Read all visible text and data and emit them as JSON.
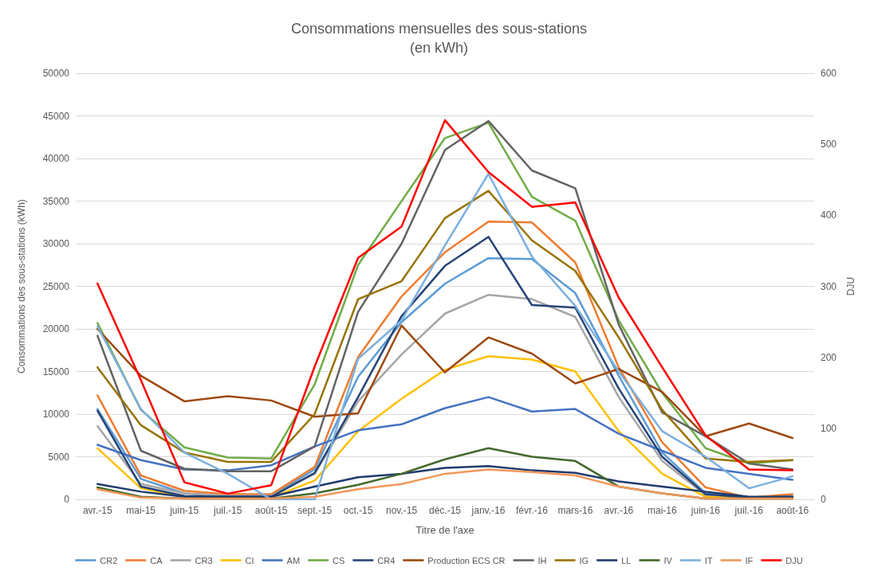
{
  "chart_data": {
    "type": "line",
    "title": "Consommations mensuelles des sous-stations",
    "subtitle": "(en kWh)",
    "xlabel": "Titre de l'axe",
    "ylabel": "Consommations des sous-stations (kWh)",
    "y2label": "DJU",
    "categories": [
      "avr.-15",
      "mai-15",
      "juin-15",
      "juil.-15",
      "août-15",
      "sept.-15",
      "oct.-15",
      "nov.-15",
      "déc.-15",
      "janv.-16",
      "févr.-16",
      "mars-16",
      "avr.-16",
      "mai-16",
      "juin-16",
      "juil.-16",
      "août-16"
    ],
    "series": [
      {
        "name": "CR2",
        "color": "#5b9bd5",
        "values": [
          10600,
          2400,
          700,
          400,
          400,
          3500,
          14400,
          20800,
          25300,
          28300,
          28200,
          24200,
          14500,
          5500,
          700,
          200,
          300
        ]
      },
      {
        "name": "CA",
        "color": "#ed7d31",
        "values": [
          12200,
          2800,
          1000,
          600,
          600,
          3800,
          16700,
          23800,
          29000,
          32600,
          32500,
          27800,
          15500,
          6700,
          1400,
          200,
          600
        ]
      },
      {
        "name": "CR3",
        "color": "#a5a5a5",
        "values": [
          8600,
          1800,
          700,
          400,
          400,
          3000,
          11500,
          17000,
          21800,
          24000,
          23500,
          21400,
          12000,
          4500,
          500,
          200,
          200
        ]
      },
      {
        "name": "CI",
        "color": "#ffc000",
        "values": [
          6000,
          1300,
          300,
          200,
          200,
          2200,
          8000,
          11800,
          15200,
          16800,
          16400,
          15000,
          8000,
          3000,
          300,
          100,
          100
        ]
      },
      {
        "name": "AM",
        "color": "#4472c4",
        "values": [
          6400,
          4600,
          3500,
          3400,
          4000,
          6200,
          8100,
          8800,
          10700,
          12000,
          10300,
          10600,
          7700,
          5700,
          3700,
          3000,
          2300
        ]
      },
      {
        "name": "CS",
        "color": "#70ad47",
        "values": [
          20700,
          10500,
          6100,
          4900,
          4800,
          13500,
          27500,
          35000,
          42400,
          44200,
          35500,
          32700,
          21000,
          12500,
          6000,
          4200,
          4600
        ]
      },
      {
        "name": "CR4",
        "color": "#264478",
        "values": [
          10400,
          1500,
          400,
          300,
          300,
          3100,
          12000,
          21500,
          27400,
          30800,
          22800,
          22500,
          13000,
          5000,
          600,
          200,
          300
        ]
      },
      {
        "name": "Production ECS CR",
        "color": "#9e480e",
        "values": [
          20000,
          14500,
          11500,
          12100,
          11600,
          9700,
          10100,
          20400,
          14900,
          19000,
          17100,
          13600,
          15300,
          12600,
          7400,
          8900,
          7200
        ]
      },
      {
        "name": "IH",
        "color": "#636363",
        "values": [
          19200,
          5700,
          3600,
          3300,
          3300,
          6200,
          22000,
          30000,
          41000,
          44400,
          38600,
          36500,
          20500,
          10200,
          7400,
          4200,
          3500
        ]
      },
      {
        "name": "IG",
        "color": "#997300",
        "values": [
          15500,
          8700,
          5500,
          4400,
          4400,
          10000,
          23500,
          25600,
          33000,
          36200,
          30400,
          26800,
          19000,
          10500,
          4800,
          4400,
          4600
        ]
      },
      {
        "name": "LL",
        "color": "#1f3a6e",
        "values": [
          1800,
          900,
          300,
          300,
          300,
          1500,
          2600,
          3000,
          3700,
          3900,
          3400,
          3100,
          2100,
          1500,
          900,
          300,
          300
        ]
      },
      {
        "name": "IV",
        "color": "#43682b",
        "values": [
          1400,
          300,
          100,
          100,
          100,
          700,
          1700,
          3000,
          4700,
          6000,
          5000,
          4500,
          1500,
          700,
          100,
          100,
          100
        ]
      },
      {
        "name": "IT",
        "color": "#7cafdd",
        "values": [
          20300,
          10600,
          5500,
          3000,
          0,
          0,
          16500,
          21000,
          29800,
          38200,
          28500,
          22700,
          15000,
          8000,
          5000,
          1300,
          2700
        ]
      },
      {
        "name": "IF",
        "color": "#f1975a",
        "values": [
          1200,
          200,
          100,
          100,
          100,
          300,
          1200,
          1800,
          3000,
          3500,
          3200,
          2800,
          1500,
          700,
          100,
          100,
          100
        ]
      },
      {
        "name": "DJU",
        "color": "#ff0000",
        "axis": "y2",
        "values": [
          304,
          168,
          24,
          8,
          20,
          187,
          340,
          384,
          534,
          461,
          412,
          418,
          284,
          186,
          90,
          42,
          41
        ]
      }
    ],
    "ylim": [
      0,
      50000
    ],
    "yticks": [
      0,
      5000,
      10000,
      15000,
      20000,
      25000,
      30000,
      35000,
      40000,
      45000,
      50000
    ],
    "y2lim": [
      0,
      600
    ],
    "y2ticks": [
      0,
      100,
      200,
      300,
      400,
      500,
      600
    ],
    "grid": "y",
    "legend": "bottom",
    "marker": "none",
    "line_style": "solid"
  }
}
